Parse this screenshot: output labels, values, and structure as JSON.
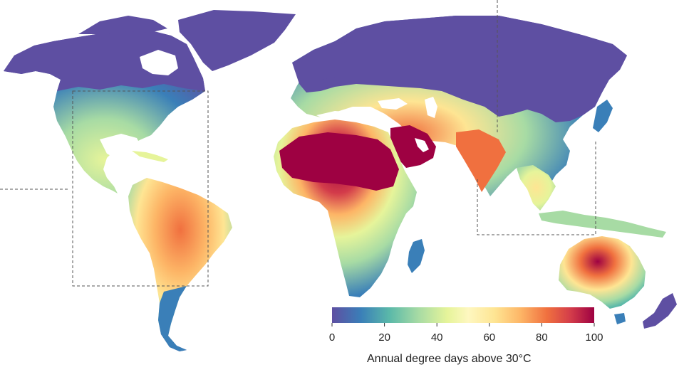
{
  "colors": {
    "scale": [
      "#5e4fa2",
      "#3a7fb8",
      "#5bb9a9",
      "#a7dba4",
      "#e6f49a",
      "#fee593",
      "#fdb566",
      "#f0703f",
      "#d33c4a",
      "#9e0142"
    ],
    "ocean": "#ffffff",
    "box_line": "#555555"
  },
  "colorbar": {
    "ticks": [
      "0",
      "20",
      "40",
      "60",
      "80",
      "100"
    ],
    "range": [
      0,
      100
    ],
    "label": "Annual degree days above 30°C"
  }
}
